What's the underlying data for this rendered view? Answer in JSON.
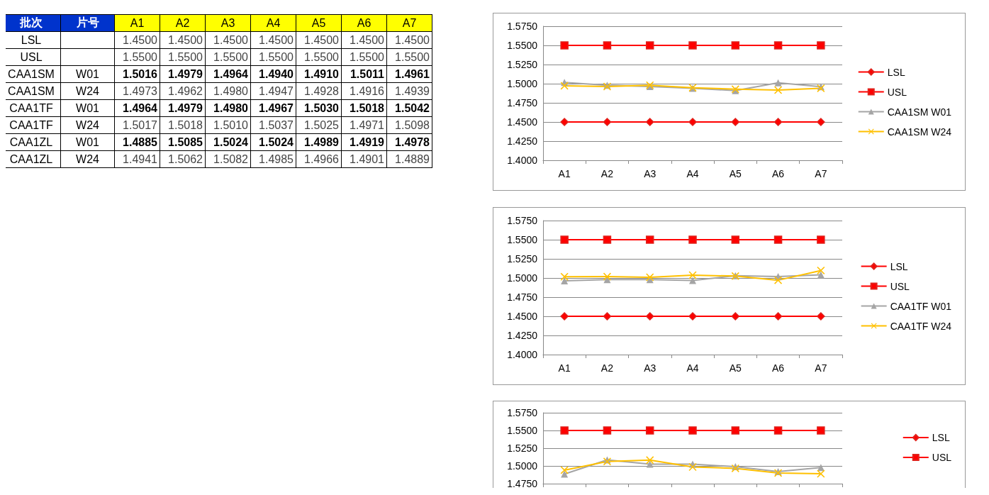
{
  "chart_data": [
    {
      "type": "heatmap",
      "ylabel": "批次",
      "y2label": "片号",
      "categories": [
        "A1",
        "A2",
        "A3",
        "A4",
        "A5",
        "A6",
        "A7"
      ],
      "y_categories": [
        "LSL",
        "USL",
        "CAA1SM",
        "CAA1SM",
        "CAA1TF",
        "CAA1TF",
        "CAA1ZL",
        "CAA1ZL"
      ],
      "y2_categories": [
        null,
        null,
        "W01",
        "W24",
        "W01",
        "W24",
        "W01",
        "W24"
      ],
      "cells": [
        [
          1.45,
          1.45,
          1.45,
          1.45,
          1.45,
          1.45,
          1.45
        ],
        [
          1.55,
          1.55,
          1.55,
          1.55,
          1.55,
          1.55,
          1.55
        ],
        [
          1.5016,
          1.4979,
          1.4964,
          1.494,
          1.491,
          1.5011,
          1.4961
        ],
        [
          1.4973,
          1.4962,
          1.498,
          1.4947,
          1.4928,
          1.4916,
          1.4939
        ],
        [
          1.4964,
          1.4979,
          1.498,
          1.4967,
          1.503,
          1.5018,
          1.5042
        ],
        [
          1.5017,
          1.5018,
          1.501,
          1.5037,
          1.5025,
          1.4971,
          1.5098
        ],
        [
          1.4885,
          1.5085,
          1.5024,
          1.5024,
          1.4989,
          1.4919,
          1.4978
        ],
        [
          1.4941,
          1.5062,
          1.5082,
          1.4985,
          1.4966,
          1.4901,
          1.4889
        ]
      ],
      "cell_labels": [
        [
          "1.4500",
          "1.4500",
          "1.4500",
          "1.4500",
          "1.4500",
          "1.4500",
          "1.4500"
        ],
        [
          "1.5500",
          "1.5500",
          "1.5500",
          "1.5500",
          "1.5500",
          "1.5500",
          "1.5500"
        ],
        [
          "1.5016",
          "1.4979",
          "1.4964",
          "1.4940",
          "1.4910",
          "1.5011",
          "1.4961"
        ],
        [
          "1.4973",
          "1.4962",
          "1.4980",
          "1.4947",
          "1.4928",
          "1.4916",
          "1.4939"
        ],
        [
          "1.4964",
          "1.4979",
          "1.4980",
          "1.4967",
          "1.5030",
          "1.5018",
          "1.5042"
        ],
        [
          "1.5017",
          "1.5018",
          "1.5010",
          "1.5037",
          "1.5025",
          "1.4971",
          "1.5098"
        ],
        [
          "1.4885",
          "1.5085",
          "1.5024",
          "1.5024",
          "1.4989",
          "1.4919",
          "1.4978"
        ],
        [
          "1.4941",
          "1.5062",
          "1.5082",
          "1.4985",
          "1.4966",
          "1.4901",
          "1.4889"
        ]
      ]
    },
    {
      "type": "line",
      "categories": [
        "A1",
        "A2",
        "A3",
        "A4",
        "A5",
        "A6",
        "A7"
      ],
      "grid": "y",
      "legend": "right",
      "ylim": [
        1.4,
        1.575
      ],
      "yticks": [
        {
          "value": 1.4,
          "label": "1.4000"
        },
        {
          "value": 1.425,
          "label": "1.4250"
        },
        {
          "value": 1.45,
          "label": "1.4500"
        },
        {
          "value": 1.475,
          "label": "1.4750"
        },
        {
          "value": 1.5,
          "label": "1.5000"
        },
        {
          "value": 1.525,
          "label": "1.5250"
        },
        {
          "value": 1.55,
          "label": "1.5500"
        },
        {
          "value": 1.575,
          "label": "1.5750"
        }
      ],
      "series": [
        {
          "name": "LSL",
          "color": "#ff0000",
          "marker": "diamond",
          "values": [
            1.45,
            1.45,
            1.45,
            1.45,
            1.45,
            1.45,
            1.45
          ]
        },
        {
          "name": "USL",
          "color": "#ff0000",
          "marker": "square",
          "values": [
            1.55,
            1.55,
            1.55,
            1.55,
            1.55,
            1.55,
            1.55
          ]
        },
        {
          "name": "CAA1SM W01",
          "color": "#a5a5a5",
          "marker": "triangle",
          "values": [
            1.5016,
            1.4979,
            1.4964,
            1.494,
            1.491,
            1.5011,
            1.4961
          ]
        },
        {
          "name": "CAA1SM W24",
          "color": "#ffc000",
          "marker": "cross",
          "values": [
            1.4973,
            1.4962,
            1.498,
            1.4947,
            1.4928,
            1.4916,
            1.4939
          ]
        }
      ]
    },
    {
      "type": "line",
      "categories": [
        "A1",
        "A2",
        "A3",
        "A4",
        "A5",
        "A6",
        "A7"
      ],
      "grid": "y",
      "legend": "right",
      "ylim": [
        1.4,
        1.575
      ],
      "yticks": [
        {
          "value": 1.4,
          "label": "1.4000"
        },
        {
          "value": 1.425,
          "label": "1.4250"
        },
        {
          "value": 1.45,
          "label": "1.4500"
        },
        {
          "value": 1.475,
          "label": "1.4750"
        },
        {
          "value": 1.5,
          "label": "1.5000"
        },
        {
          "value": 1.525,
          "label": "1.5250"
        },
        {
          "value": 1.55,
          "label": "1.5500"
        },
        {
          "value": 1.575,
          "label": "1.5750"
        }
      ],
      "series": [
        {
          "name": "LSL",
          "color": "#ff0000",
          "marker": "diamond",
          "values": [
            1.45,
            1.45,
            1.45,
            1.45,
            1.45,
            1.45,
            1.45
          ]
        },
        {
          "name": "USL",
          "color": "#ff0000",
          "marker": "square",
          "values": [
            1.55,
            1.55,
            1.55,
            1.55,
            1.55,
            1.55,
            1.55
          ]
        },
        {
          "name": "CAA1TF W01",
          "color": "#a5a5a5",
          "marker": "triangle",
          "values": [
            1.4964,
            1.4979,
            1.498,
            1.4967,
            1.503,
            1.5018,
            1.5042
          ]
        },
        {
          "name": "CAA1TF W24",
          "color": "#ffc000",
          "marker": "cross",
          "values": [
            1.5017,
            1.5018,
            1.501,
            1.5037,
            1.5025,
            1.4971,
            1.5098
          ]
        }
      ]
    },
    {
      "type": "line",
      "categories": [
        null,
        null,
        null,
        null,
        null,
        null,
        null
      ],
      "grid": "y",
      "legend": "right",
      "tick_labels": "y",
      "ylim": [
        1.475,
        1.575
      ],
      "yticks": [
        {
          "value": 1.475,
          "label": "1.4750"
        },
        {
          "value": 1.5,
          "label": "1.5000"
        },
        {
          "value": 1.525,
          "label": "1.5250"
        },
        {
          "value": 1.55,
          "label": "1.5500"
        },
        {
          "value": 1.575,
          "label": "1.5750"
        }
      ],
      "series": [
        {
          "name": "LSL",
          "color": "#ff0000",
          "marker": "diamond",
          "values": [
            null,
            null,
            null,
            null,
            null,
            null,
            null
          ]
        },
        {
          "name": "USL",
          "color": "#ff0000",
          "marker": "square",
          "values": [
            1.55,
            1.55,
            1.55,
            1.55,
            1.55,
            1.55,
            1.55
          ]
        },
        {
          "color": "#a5a5a5",
          "marker": "triangle",
          "values": [
            1.4885,
            1.5085,
            1.5024,
            1.5024,
            1.4989,
            1.4919,
            1.4978
          ]
        },
        {
          "color": "#ffc000",
          "marker": "cross",
          "values": [
            1.4941,
            1.5062,
            1.5082,
            1.4985,
            1.4966,
            1.4901,
            1.4889
          ]
        }
      ]
    }
  ]
}
